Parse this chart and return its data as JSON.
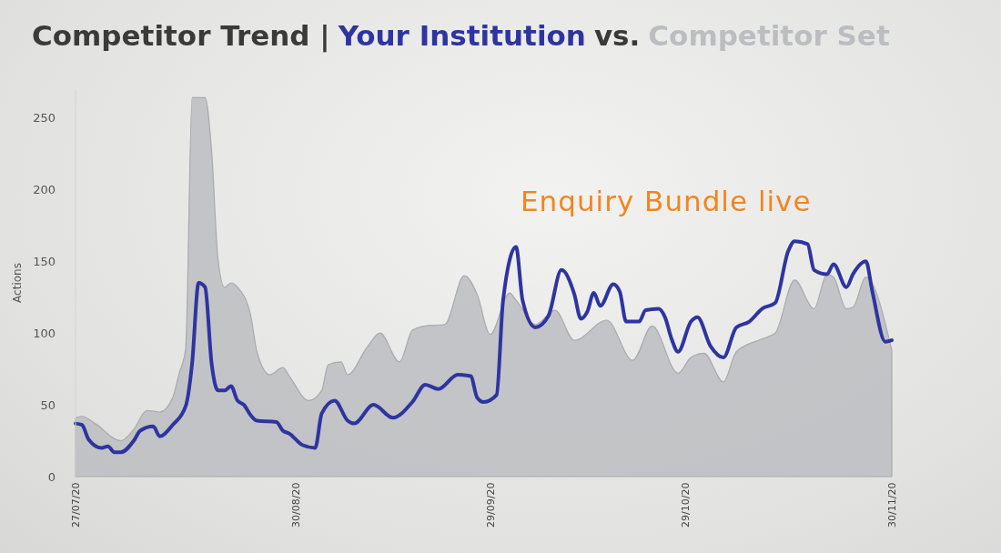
{
  "chart_data": {
    "type": "line",
    "title": "Competitor Trend |",
    "ylabel": "Actions",
    "legend": "top",
    "annotations": [
      "vs.",
      "Enquiry Bundle live"
    ],
    "xlim": [
      "2020-07-27",
      "2020-11-30"
    ],
    "xticks": [
      {
        "value": "2020-07-27",
        "label": "27/07/20"
      },
      {
        "value": "2020-08-30",
        "label": "30/08/20"
      },
      {
        "value": "2020-09-29",
        "label": "29/09/20"
      },
      {
        "value": "2020-10-29",
        "label": "29/10/20"
      },
      {
        "value": "2020-11-30",
        "label": "30/11/20"
      }
    ],
    "ylim": [
      0,
      270
    ],
    "yticks": [
      0,
      50,
      100,
      150,
      200,
      250
    ],
    "grid": false,
    "series": [
      {
        "name": "Your Institution",
        "color": "#2e35a0",
        "x": [
          "2020-07-27",
          "2020-07-28",
          "2020-07-29",
          "2020-07-31",
          "2020-08-01",
          "2020-08-02",
          "2020-08-03",
          "2020-08-05",
          "2020-08-06",
          "2020-08-08",
          "2020-08-09",
          "2020-08-11",
          "2020-08-13",
          "2020-08-14",
          "2020-08-15",
          "2020-08-16",
          "2020-08-17",
          "2020-08-18",
          "2020-08-19",
          "2020-08-20",
          "2020-08-21",
          "2020-08-22",
          "2020-08-23",
          "2020-08-24",
          "2020-08-27",
          "2020-08-28",
          "2020-08-29",
          "2020-08-31",
          "2020-09-02",
          "2020-09-03",
          "2020-09-05",
          "2020-09-07",
          "2020-09-08",
          "2020-09-11",
          "2020-09-14",
          "2020-09-17",
          "2020-09-19",
          "2020-09-21",
          "2020-09-24",
          "2020-09-26",
          "2020-09-27",
          "2020-09-28",
          "2020-09-30",
          "2020-10-01",
          "2020-10-03",
          "2020-10-04",
          "2020-10-06",
          "2020-10-08",
          "2020-10-10",
          "2020-10-12",
          "2020-10-13",
          "2020-10-14",
          "2020-10-15",
          "2020-10-16",
          "2020-10-18",
          "2020-10-19",
          "2020-10-20",
          "2020-10-22",
          "2020-10-23",
          "2020-10-25",
          "2020-10-26",
          "2020-10-27",
          "2020-10-28",
          "2020-10-30",
          "2020-10-31",
          "2020-11-02",
          "2020-11-04",
          "2020-11-06",
          "2020-11-08",
          "2020-11-10",
          "2020-11-12",
          "2020-11-14",
          "2020-11-15",
          "2020-11-17",
          "2020-11-18",
          "2020-11-20",
          "2020-11-21",
          "2020-11-23",
          "2020-11-24",
          "2020-11-26",
          "2020-11-27",
          "2020-11-29",
          "2020-11-30"
        ],
        "values": [
          37,
          36,
          26,
          20,
          21,
          17,
          17,
          25,
          32,
          35,
          28,
          36,
          49,
          79,
          135,
          132,
          79,
          60,
          60,
          63,
          53,
          50,
          43,
          39,
          38,
          32,
          30,
          22,
          20,
          44,
          53,
          39,
          37,
          50,
          41,
          52,
          64,
          61,
          71,
          70,
          55,
          52,
          57,
          123,
          160,
          123,
          104,
          112,
          144,
          127,
          110,
          115,
          128,
          119,
          134,
          129,
          108,
          108,
          116,
          117,
          111,
          96,
          87,
          108,
          111,
          91,
          83,
          104,
          108,
          117,
          121,
          157,
          164,
          162,
          144,
          141,
          148,
          132,
          141,
          150,
          129,
          94,
          95
        ]
      },
      {
        "name": "Competitor Set",
        "type": "area",
        "color": "#bcbdc1",
        "x": [
          "2020-07-27",
          "2020-07-28",
          "2020-07-30",
          "2020-08-03",
          "2020-08-05",
          "2020-08-07",
          "2020-08-09",
          "2020-08-11",
          "2020-08-12",
          "2020-08-13",
          "2020-08-14",
          "2020-08-16",
          "2020-08-17",
          "2020-08-18",
          "2020-08-19",
          "2020-08-20",
          "2020-08-21",
          "2020-08-23",
          "2020-08-24",
          "2020-08-26",
          "2020-08-28",
          "2020-08-29",
          "2020-09-01",
          "2020-09-03",
          "2020-09-04",
          "2020-09-06",
          "2020-09-07",
          "2020-09-10",
          "2020-09-12",
          "2020-09-15",
          "2020-09-17",
          "2020-09-19",
          "2020-09-22",
          "2020-09-25",
          "2020-09-27",
          "2020-09-29",
          "2020-10-02",
          "2020-10-03",
          "2020-10-06",
          "2020-10-09",
          "2020-10-12",
          "2020-10-17",
          "2020-10-21",
          "2020-10-24",
          "2020-10-28",
          "2020-10-30",
          "2020-11-01",
          "2020-11-04",
          "2020-11-06",
          "2020-11-10",
          "2020-11-12",
          "2020-11-15",
          "2020-11-18",
          "2020-11-20",
          "2020-11-21",
          "2020-11-23",
          "2020-11-24",
          "2020-11-26",
          "2020-11-30"
        ],
        "values": [
          41,
          42,
          37,
          25,
          33,
          46,
          45,
          55,
          72,
          89,
          264,
          264,
          227,
          151,
          132,
          135,
          132,
          113,
          87,
          71,
          76,
          70,
          53,
          60,
          78,
          80,
          71,
          90,
          100,
          80,
          102,
          105,
          106,
          140,
          127,
          99,
          128,
          123,
          106,
          116,
          95,
          109,
          81,
          105,
          72,
          83,
          86,
          66,
          87,
          96,
          100,
          137,
          117,
          141,
          139,
          117,
          118,
          139,
          88
        ]
      }
    ]
  }
}
